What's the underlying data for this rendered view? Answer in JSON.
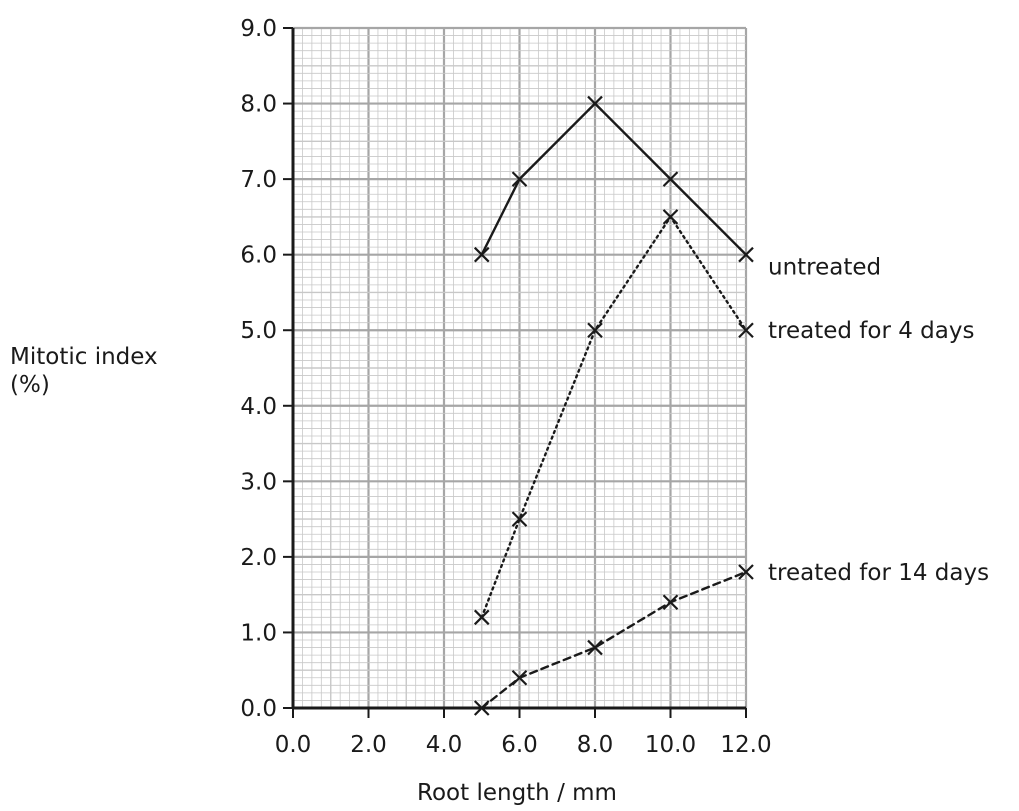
{
  "chart_data": {
    "type": "line",
    "title": "",
    "xlabel": "Root length / mm",
    "ylabel_line1": "Mitotic index",
    "ylabel_line2": "(%)",
    "xlim": [
      0,
      12
    ],
    "ylim": [
      0,
      9
    ],
    "x_ticks": [
      "0.0",
      "2.0",
      "4.0",
      "6.0",
      "8.0",
      "10.0",
      "12.0"
    ],
    "y_ticks": [
      "0.0",
      "1.0",
      "2.0",
      "3.0",
      "4.0",
      "5.0",
      "6.0",
      "7.0",
      "8.0",
      "9.0"
    ],
    "grid": true,
    "legend": "none",
    "colors": {
      "line": "#1a1a1a",
      "major_grid": "#a6a6a6",
      "minor_grid": "#c8c8c8"
    },
    "series": [
      {
        "name": "untreated",
        "style": "solid",
        "points": [
          [
            5,
            6.0
          ],
          [
            6,
            7.0
          ],
          [
            8,
            8.0
          ],
          [
            10,
            7.0
          ],
          [
            12,
            6.0
          ]
        ]
      },
      {
        "name": "treated for 4 days",
        "style": "dotted",
        "points": [
          [
            5,
            1.2
          ],
          [
            6,
            2.5
          ],
          [
            8,
            5.0
          ],
          [
            10,
            6.5
          ],
          [
            12,
            5.0
          ]
        ]
      },
      {
        "name": "treated for 14 days",
        "style": "dashed",
        "points": [
          [
            5,
            0.0
          ],
          [
            6,
            0.4
          ],
          [
            8,
            0.8
          ],
          [
            10,
            1.4
          ],
          [
            12,
            1.8
          ]
        ]
      }
    ]
  }
}
